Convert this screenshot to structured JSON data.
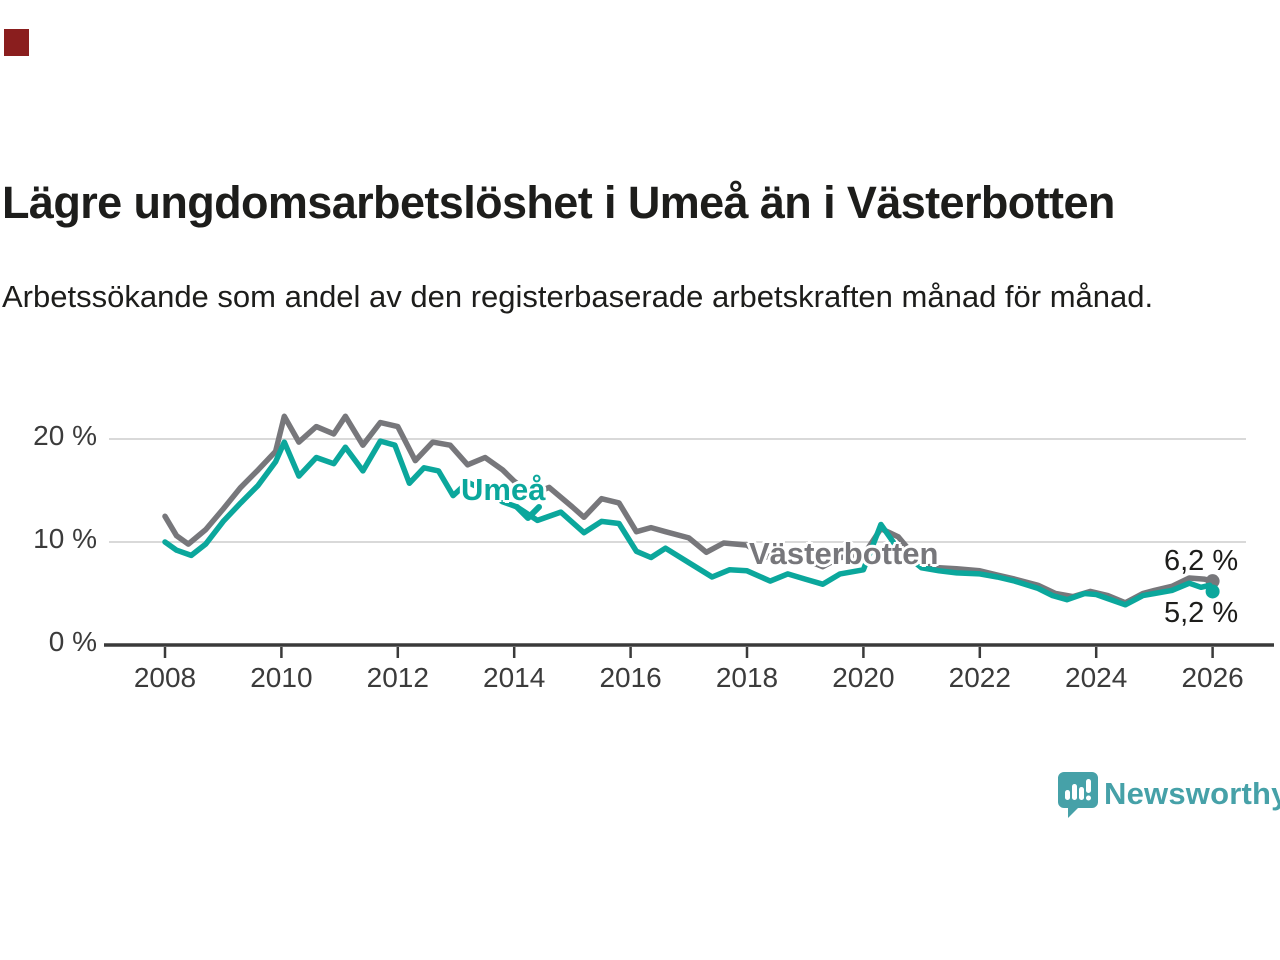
{
  "colors": {
    "marker_red": "#8a1e1e",
    "teal": "#0ba79c",
    "gray": "#77777b",
    "brand_teal": "#46a1a8",
    "grid": "#d9d9d9",
    "axis": "#3a3a3a",
    "text": "#1d1d1b"
  },
  "header": {
    "title": "Lägre ungdomsarbetslöshet i Umeå än i Västerbotten",
    "subtitle": "Arbetssökande som andel av den registerbaserade arbetskraften månad för månad."
  },
  "chart_data": {
    "type": "line",
    "title": "Lägre ungdomsarbetslöshet i Umeå än i Västerbotten",
    "xlabel": "",
    "ylabel": "",
    "unit": "%",
    "grid": true,
    "legend_position": "inline-labels",
    "ylim": [
      0,
      23.5
    ],
    "xlim": [
      2007.6,
      2026.6
    ],
    "yticks": [
      {
        "value": 20,
        "label": "20 %"
      },
      {
        "value": 10,
        "label": "10 %"
      },
      {
        "value": 0,
        "label": "0 %"
      }
    ],
    "xticks": [
      2008,
      2010,
      2012,
      2014,
      2016,
      2018,
      2020,
      2022,
      2024,
      2026
    ],
    "series": [
      {
        "name": "Västerbotten",
        "color": "#77777b",
        "end_label": "6,2 %",
        "x": [
          2008.0,
          2008.2,
          2008.4,
          2008.7,
          2009.0,
          2009.3,
          2009.6,
          2009.9,
          2010.05,
          2010.3,
          2010.6,
          2010.9,
          2011.1,
          2011.4,
          2011.7,
          2012.0,
          2012.3,
          2012.6,
          2012.9,
          2013.2,
          2013.5,
          2013.8,
          2014.0,
          2014.3,
          2014.6,
          2015.0,
          2015.2,
          2015.5,
          2015.8,
          2016.1,
          2016.35,
          2016.6,
          2017.0,
          2017.3,
          2017.6,
          2018.0,
          2018.3,
          2018.6,
          2019.0,
          2019.3,
          2019.6,
          2020.0,
          2020.3,
          2020.6,
          2021.0,
          2021.3,
          2021.6,
          2022.0,
          2022.3,
          2022.6,
          2023.0,
          2023.3,
          2023.6,
          2023.9,
          2024.2,
          2024.5,
          2024.8,
          2025.0,
          2025.3,
          2025.6,
          2025.85,
          2026.0
        ],
        "values": [
          12.5,
          10.6,
          9.8,
          11.2,
          13.2,
          15.3,
          17.0,
          18.8,
          22.2,
          19.7,
          21.2,
          20.5,
          22.2,
          19.4,
          21.6,
          21.2,
          17.9,
          19.7,
          19.4,
          17.5,
          18.2,
          17.0,
          15.9,
          14.6,
          15.3,
          13.4,
          12.4,
          14.2,
          13.8,
          11.0,
          11.4,
          11.0,
          10.4,
          9.0,
          9.9,
          9.7,
          8.5,
          9.0,
          8.3,
          7.6,
          8.5,
          8.7,
          11.3,
          10.5,
          7.8,
          7.5,
          7.4,
          7.2,
          6.8,
          6.4,
          5.8,
          5.0,
          4.7,
          5.2,
          4.8,
          4.1,
          5.0,
          5.3,
          5.7,
          6.5,
          6.4,
          6.2
        ]
      },
      {
        "name": "Umeå",
        "color": "#0ba79c",
        "end_label": "5,2 %",
        "x": [
          2008.0,
          2008.2,
          2008.45,
          2008.7,
          2009.0,
          2009.3,
          2009.6,
          2009.9,
          2010.05,
          2010.3,
          2010.6,
          2010.9,
          2011.1,
          2011.4,
          2011.7,
          2011.95,
          2012.2,
          2012.45,
          2012.7,
          2012.95,
          2013.2,
          2013.5,
          2013.8,
          2014.05,
          2014.4,
          2014.8,
          2015.2,
          2015.5,
          2015.8,
          2016.1,
          2016.35,
          2016.6,
          2017.0,
          2017.4,
          2017.7,
          2018.0,
          2018.4,
          2018.7,
          2019.0,
          2019.3,
          2019.6,
          2020.0,
          2020.3,
          2020.6,
          2021.0,
          2021.3,
          2021.6,
          2022.0,
          2022.3,
          2022.6,
          2023.0,
          2023.25,
          2023.5,
          2023.8,
          2024.0,
          2024.2,
          2024.5,
          2024.8,
          2025.0,
          2025.3,
          2025.6,
          2025.8,
          2025.95,
          2026.0
        ],
        "values": [
          10.0,
          9.2,
          8.7,
          9.8,
          12.0,
          13.8,
          15.5,
          17.8,
          19.7,
          16.4,
          18.2,
          17.6,
          19.2,
          16.9,
          19.8,
          19.4,
          15.7,
          17.2,
          16.9,
          14.5,
          15.8,
          15.0,
          13.9,
          13.4,
          12.1,
          12.9,
          10.9,
          12.0,
          11.8,
          9.1,
          8.5,
          9.4,
          8.0,
          6.6,
          7.3,
          7.2,
          6.2,
          6.9,
          6.4,
          5.9,
          6.9,
          7.3,
          11.7,
          9.3,
          7.5,
          7.2,
          7.0,
          6.9,
          6.6,
          6.2,
          5.5,
          4.8,
          4.4,
          5.0,
          4.9,
          4.5,
          3.9,
          4.8,
          5.0,
          5.3,
          6.0,
          5.6,
          5.8,
          5.2
        ]
      }
    ],
    "annotations": [
      {
        "text": "Umeå",
        "series": "Umeå"
      },
      {
        "text": "Västerbotten",
        "series": "Västerbotten"
      }
    ]
  },
  "footer": {
    "brand": "Newsworthy"
  }
}
